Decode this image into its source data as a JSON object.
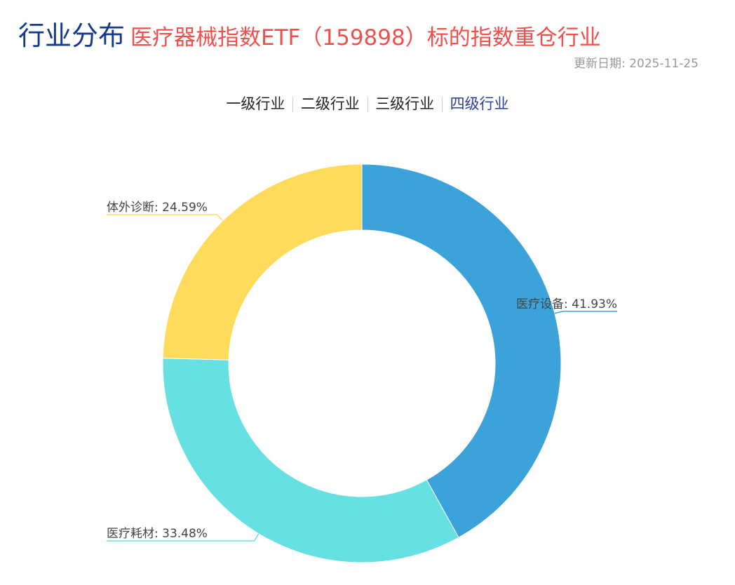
{
  "header": {
    "title": "行业分布",
    "subtitle": "医疗器械指数ETF（159898）标的指数重仓行业",
    "update_date": "更新日期: 2025-11-25"
  },
  "tabs": [
    {
      "label": "一级行业",
      "active": false
    },
    {
      "label": "二级行业",
      "active": false
    },
    {
      "label": "三级行业",
      "active": false
    },
    {
      "label": "四级行业",
      "active": true
    }
  ],
  "chart_data": {
    "type": "pie",
    "variant": "donut",
    "start": "top, clockwise",
    "slices": [
      {
        "name": "医疗设备",
        "value": 41.93,
        "label": "医疗设备: 41.93%",
        "color": "#3ba3d9"
      },
      {
        "name": "医疗耗材",
        "value": 33.48,
        "label": "医疗耗材: 33.48%",
        "color": "#67e0e3"
      },
      {
        "name": "体外诊断",
        "value": 24.59,
        "label": "体外诊断: 24.59%",
        "color": "#ffdb5c"
      }
    ]
  }
}
